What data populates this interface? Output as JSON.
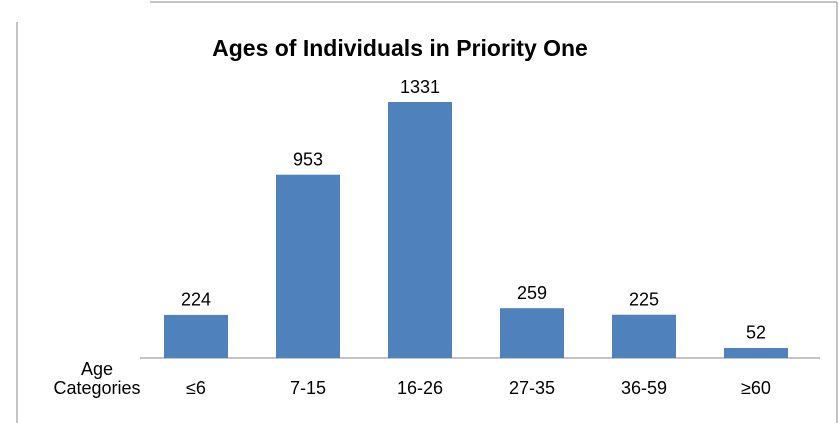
{
  "chart_data": {
    "type": "bar",
    "title": "Ages of Individuals in Priority One",
    "x_label": [
      "Age",
      "Categories"
    ],
    "categories": [
      "≤6",
      "7-15",
      "16-26",
      "27-35",
      "36-59",
      "≥60"
    ],
    "values": [
      224,
      953,
      1331,
      259,
      225,
      52
    ],
    "color": "#4f81bd"
  }
}
